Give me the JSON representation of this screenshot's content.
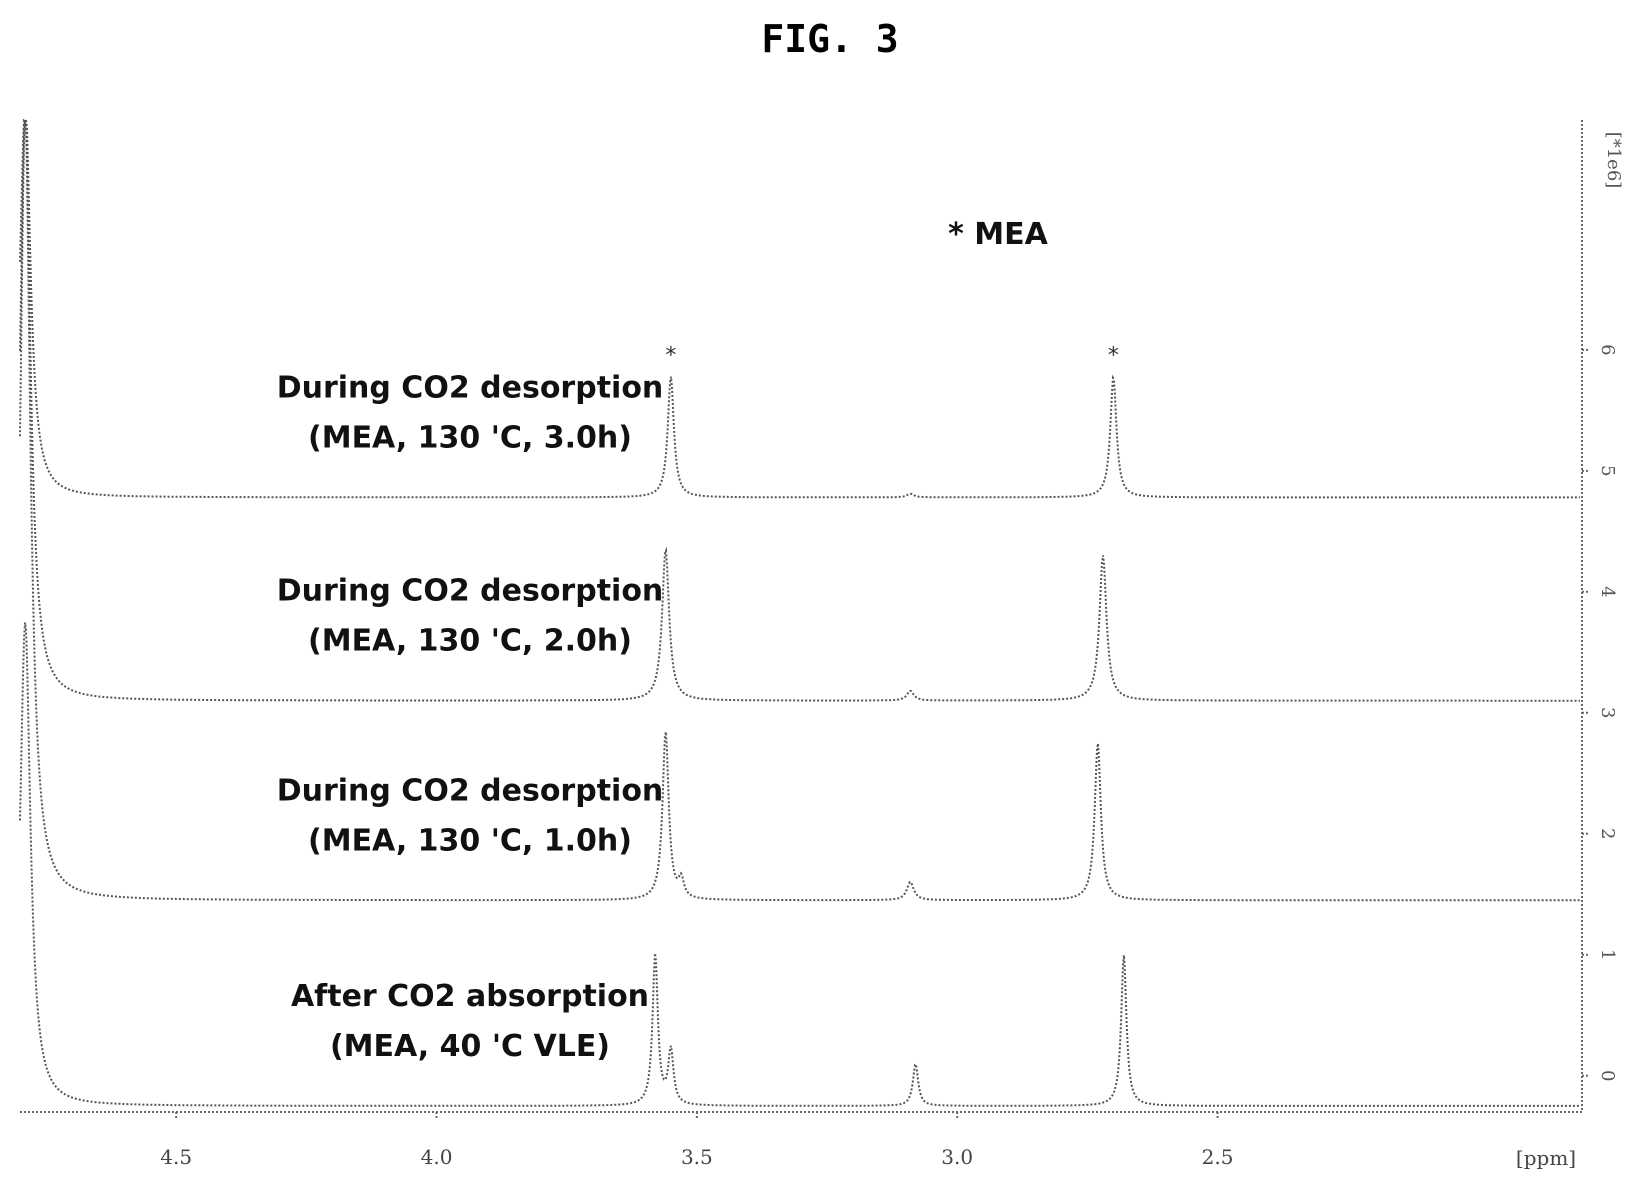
{
  "figure_title": "FIG. 3",
  "legend_note": "* MEA",
  "peak_marker": "*",
  "chart_data": {
    "type": "line",
    "title": "FIG. 3",
    "xlabel": "[ppm]",
    "ylabel": "[*1e6]",
    "xlim": [
      4.8,
      1.8
    ],
    "x_ticks": [
      "4.5",
      "4.0",
      "3.5",
      "3.0",
      "2.5"
    ],
    "x_tick_values": [
      4.5,
      4.0,
      3.5,
      3.0,
      2.5
    ],
    "y_ticks": [
      "0",
      "1",
      "2",
      "3",
      "4",
      "5",
      "6"
    ],
    "y_tick_values": [
      0,
      1,
      2,
      3,
      4,
      5,
      6
    ],
    "ylim": [
      -0.3,
      7.9
    ],
    "grid": false,
    "series": [
      {
        "label_line1": "After CO2 absorption",
        "label_line2": "(MEA, 40 'C VLE)",
        "baseline": -0.25,
        "peaks": [
          {
            "ppm": 4.79,
            "height": 4.0,
            "width": 0.012
          },
          {
            "ppm": 3.58,
            "height": 1.25,
            "width": 0.006
          },
          {
            "ppm": 3.55,
            "height": 0.45,
            "width": 0.006
          },
          {
            "ppm": 3.08,
            "height": 0.35,
            "width": 0.006
          },
          {
            "ppm": 2.68,
            "height": 1.25,
            "width": 0.006
          }
        ]
      },
      {
        "label_line1": "During CO2 desorption",
        "label_line2": "(MEA, 130 'C, 1.0h)",
        "baseline": 1.45,
        "peaks": [
          {
            "ppm": 4.79,
            "height": 6.5,
            "width": 0.012
          },
          {
            "ppm": 3.56,
            "height": 1.4,
            "width": 0.007
          },
          {
            "ppm": 3.53,
            "height": 0.15,
            "width": 0.006
          },
          {
            "ppm": 3.09,
            "height": 0.15,
            "width": 0.008
          },
          {
            "ppm": 2.73,
            "height": 1.3,
            "width": 0.007
          }
        ]
      },
      {
        "label_line1": "During CO2 desorption",
        "label_line2": "(MEA, 130 'C, 2.0h)",
        "baseline": 3.1,
        "peaks": [
          {
            "ppm": 4.79,
            "height": 4.9,
            "width": 0.012
          },
          {
            "ppm": 3.56,
            "height": 1.25,
            "width": 0.008
          },
          {
            "ppm": 3.09,
            "height": 0.08,
            "width": 0.008
          },
          {
            "ppm": 2.72,
            "height": 1.2,
            "width": 0.008
          }
        ]
      },
      {
        "label_line1": "During CO2 desorption",
        "label_line2": "(MEA, 130 'C, 3.0h)",
        "baseline": 4.78,
        "peaks": [
          {
            "ppm": 4.79,
            "height": 3.3,
            "width": 0.012
          },
          {
            "ppm": 3.55,
            "height": 1.0,
            "width": 0.007
          },
          {
            "ppm": 3.09,
            "height": 0.03,
            "width": 0.008
          },
          {
            "ppm": 2.7,
            "height": 1.0,
            "width": 0.007
          }
        ]
      }
    ]
  }
}
